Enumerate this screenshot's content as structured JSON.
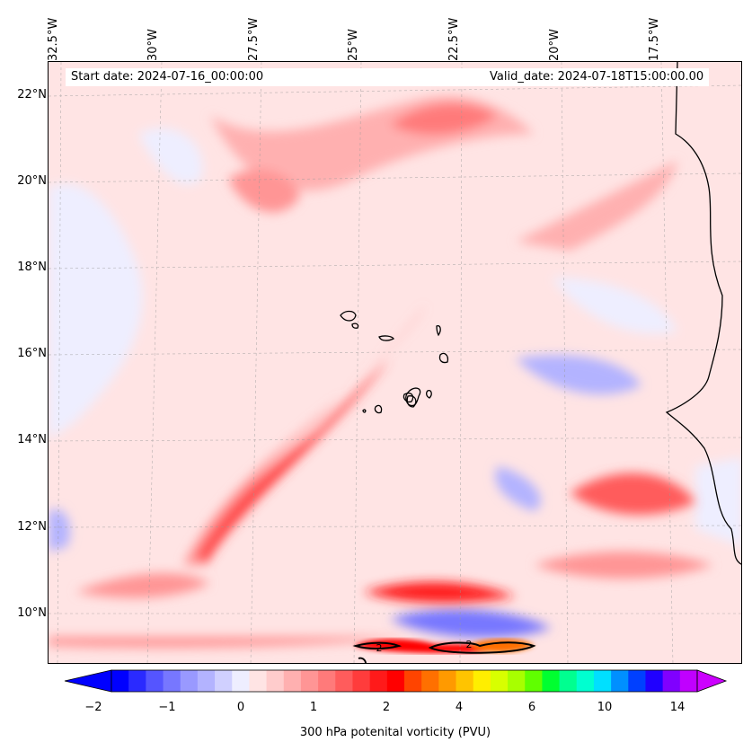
{
  "map": {
    "start_date": "Start date: 2024-07-16_00:00:00",
    "valid_date": "Valid_date: 2024-07-18T15:00:00.00",
    "lon_labels": [
      "32.5°W",
      "30°W",
      "27.5°W",
      "25°W",
      "22.5°W",
      "20°W",
      "17.5°W"
    ],
    "lat_labels": [
      "22°N",
      "20°N",
      "18°N",
      "16°N",
      "14°N",
      "12°N",
      "10°N"
    ],
    "contour_labels": [
      "2",
      "2"
    ]
  },
  "colorbar": {
    "label": "300 hPa potenital vorticity (PVU)",
    "ticks": [
      "−2",
      "−1",
      "0",
      "1",
      "2",
      "4",
      "6",
      "10",
      "14"
    ],
    "colors": [
      "#0000ff",
      "#2a2aff",
      "#5555ff",
      "#7777ff",
      "#9999ff",
      "#b3b3ff",
      "#d0d0ff",
      "#eeeeff",
      "#ffe4e4",
      "#ffcccc",
      "#ffb0b0",
      "#ff9595",
      "#ff7a7a",
      "#ff5c5c",
      "#ff3c3c",
      "#ff1a1a",
      "#ff0000",
      "#ff4400",
      "#ff7000",
      "#ff9a00",
      "#ffc400",
      "#ffee00",
      "#d8ff00",
      "#a8ff00",
      "#60ff00",
      "#00ff30",
      "#00ff90",
      "#00ffd0",
      "#00e0ff",
      "#0090ff",
      "#0040ff",
      "#2000ff",
      "#8000ff",
      "#c000ff"
    ],
    "extend_low_color": "#0000ff",
    "extend_high_color": "#cc00ff"
  }
}
